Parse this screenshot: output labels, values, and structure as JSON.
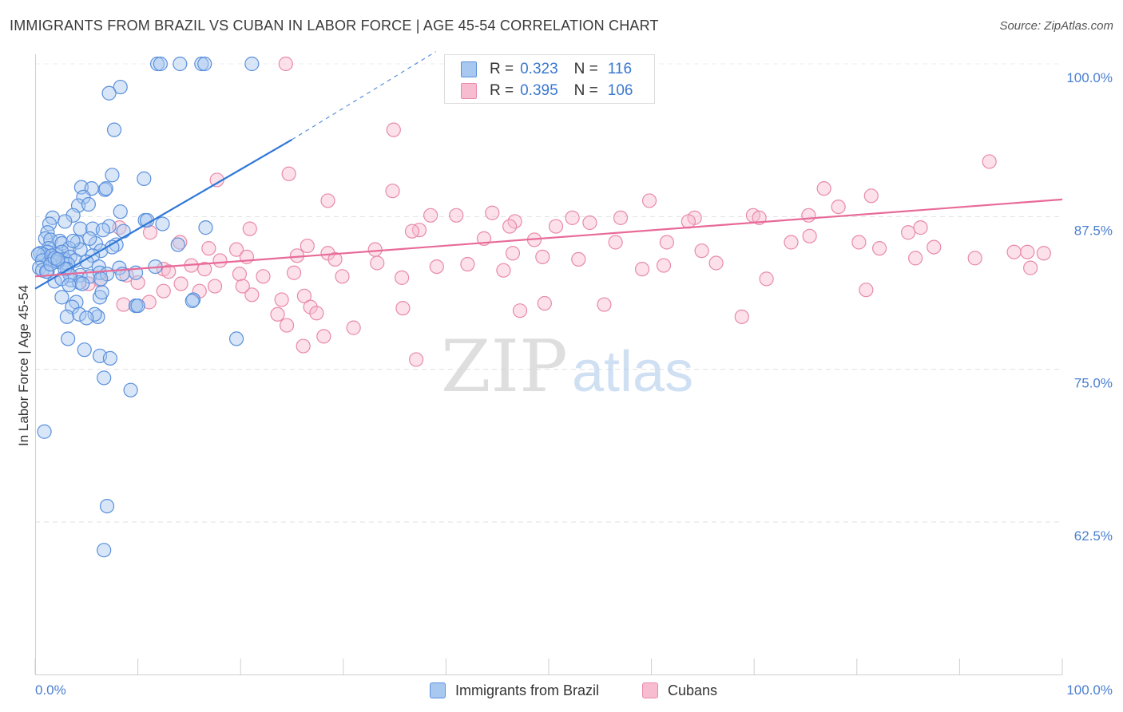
{
  "header": {
    "title": "IMMIGRANTS FROM BRAZIL VS CUBAN IN LABOR FORCE | AGE 45-54 CORRELATION CHART",
    "source": "Source: ZipAtlas.com"
  },
  "watermark": "ZIPatlas",
  "stats": {
    "r_label": "R =",
    "n_label": "N =",
    "rows": [
      {
        "r": "0.323",
        "n": "116"
      },
      {
        "r": "0.395",
        "n": "106"
      }
    ]
  },
  "colors": {
    "brazil_fill": "#a8c8f0",
    "brazil_stroke": "#5a90dc",
    "brazil_line": "#2f78d8",
    "cuba_fill": "#f8bcd0",
    "cuba_stroke": "#e88aa8",
    "cuba_line": "#e86a98",
    "tick_text": "#4a7fd0"
  },
  "chart_data": {
    "type": "scatter",
    "xlabel": "",
    "ylabel": "In Labor Force | Age 45-54",
    "xlim": [
      0,
      100
    ],
    "ylim": [
      52.5,
      101.5
    ],
    "x_tick_labels": [
      "0.0%",
      "100.0%"
    ],
    "y_ticks": [
      62.5,
      75.0,
      87.5,
      100.0
    ],
    "y_tick_labels": [
      "62.5%",
      "75.0%",
      "87.5%",
      "100.0%"
    ],
    "grid": "horizontal-dashed",
    "legend": "bottom-center",
    "series": [
      {
        "name": "Immigrants from Brazil",
        "color": "#5a90dc",
        "r": 0.323,
        "n": 116,
        "trend": {
          "x": [
            0.0,
            25.0
          ],
          "y": [
            81.6,
            93.8
          ],
          "dashed_to": [
            39.0,
            101.0
          ]
        },
        "x": [
          11.9,
          12.2,
          14.1,
          16.2,
          16.5,
          21.1,
          8.3,
          7.2,
          7.7,
          7.5,
          6.8,
          10.6,
          6.9,
          4.5,
          5.5,
          4.7,
          4.2,
          5.2,
          3.7,
          8.3,
          7.2,
          10.7,
          10.9,
          1.7,
          1.4,
          1.2,
          2.9,
          4.4,
          5.6,
          6.6,
          8.6,
          12.4,
          13.9,
          16.6,
          1.0,
          1.5,
          2.4,
          2.6,
          4.1,
          5.9,
          7.9,
          5.3,
          3.3,
          4.4,
          6.4,
          7.5,
          1.3,
          1.2,
          0.8,
          0.5,
          0.3,
          2.0,
          2.6,
          2.9,
          3.4,
          5.6,
          0.7,
          1.7,
          2.7,
          3.9,
          3.2,
          5.0,
          6.2,
          8.2,
          11.7,
          0.4,
          0.7,
          1.2,
          3.1,
          4.4,
          5.3,
          6.3,
          7.0,
          8.5,
          9.8,
          15.4,
          1.9,
          3.5,
          4.3,
          6.4,
          9.8,
          2.6,
          4.0,
          3.6,
          6.3,
          6.5,
          9.8,
          10.0,
          15.3,
          19.6,
          3.1,
          4.3,
          6.1,
          5.8,
          5.0,
          3.2,
          4.8,
          6.3,
          7.3,
          6.7,
          9.3,
          7.0,
          6.7,
          0.9,
          1.6,
          2.2,
          2.9,
          3.4,
          1.1,
          1.5,
          1.9,
          2.6,
          3.3,
          4.6,
          2.2,
          3.7
        ],
        "y": [
          100.0,
          100.0,
          100.0,
          100.0,
          100.0,
          100.0,
          98.1,
          97.6,
          94.6,
          90.9,
          89.7,
          90.6,
          89.8,
          89.9,
          89.8,
          89.1,
          88.4,
          88.5,
          87.6,
          87.9,
          86.7,
          87.2,
          87.2,
          87.4,
          86.9,
          86.2,
          87.1,
          86.5,
          86.5,
          86.4,
          86.3,
          86.9,
          85.2,
          86.6,
          85.7,
          85.6,
          85.5,
          85.3,
          85.4,
          85.3,
          85.2,
          85.7,
          84.9,
          84.8,
          84.7,
          85.0,
          84.9,
          84.6,
          84.4,
          84.5,
          84.4,
          84.4,
          84.6,
          84.0,
          84.2,
          84.3,
          83.9,
          83.9,
          83.7,
          83.9,
          83.6,
          83.8,
          83.4,
          83.3,
          83.4,
          83.3,
          83.1,
          83.0,
          83.2,
          82.7,
          82.6,
          82.9,
          82.8,
          82.8,
          82.9,
          80.7,
          82.2,
          82.3,
          82.1,
          82.4,
          80.2,
          80.9,
          80.5,
          80.1,
          80.9,
          81.3,
          80.2,
          80.2,
          80.6,
          77.5,
          79.3,
          79.5,
          79.3,
          79.5,
          79.2,
          77.5,
          76.6,
          76.1,
          75.9,
          74.3,
          73.3,
          63.8,
          60.2,
          69.9,
          84.3,
          83.8,
          83.2,
          82.7,
          83.0,
          83.6,
          84.1,
          82.4,
          81.9,
          82.0,
          84.0,
          85.5
        ]
      },
      {
        "name": "Cubans",
        "color": "#e88aa8",
        "r": 0.395,
        "n": 106,
        "trend": {
          "x": [
            0.0,
            100.0
          ],
          "y": [
            82.6,
            88.9
          ]
        },
        "x": [
          24.4,
          34.9,
          92.9,
          24.7,
          17.7,
          28.5,
          76.8,
          59.8,
          81.4,
          78.2,
          69.9,
          34.8,
          46.7,
          44.5,
          41.0,
          38.5,
          52.3,
          57.0,
          64.2,
          70.5,
          75.3,
          37.4,
          46.2,
          50.7,
          54.0,
          63.6,
          85.0,
          86.2,
          75.4,
          80.2,
          8.2,
          11.2,
          14.1,
          16.9,
          19.6,
          20.9,
          26.5,
          36.7,
          28.5,
          33.1,
          49.4,
          43.7,
          48.6,
          56.5,
          61.5,
          64.9,
          73.6,
          82.2,
          87.5,
          98.2,
          96.6,
          91.5,
          15.2,
          18.0,
          20.6,
          25.5,
          29.2,
          33.3,
          39.1,
          42.1,
          52.9,
          46.5,
          61.2,
          66.3,
          85.7,
          95.3,
          96.9,
          12.5,
          13.0,
          16.5,
          19.9,
          22.2,
          25.2,
          29.9,
          35.7,
          45.6,
          59.1,
          71.2,
          5.2,
          6.3,
          8.9,
          10.0,
          12.5,
          14.2,
          17.5,
          21.1,
          24.0,
          26.2,
          26.8,
          27.4,
          35.8,
          47.2,
          49.6,
          55.4,
          68.8,
          80.9,
          8.6,
          11.1,
          16.0,
          20.2,
          23.6,
          24.5,
          31.0,
          28.1,
          26.1,
          37.1
        ],
        "y": [
          100.0,
          94.6,
          92.0,
          91.0,
          90.5,
          88.8,
          89.8,
          88.8,
          89.2,
          88.3,
          87.6,
          89.6,
          87.1,
          87.8,
          87.6,
          87.6,
          87.4,
          87.4,
          87.4,
          87.4,
          87.6,
          86.4,
          86.7,
          86.7,
          87.0,
          87.1,
          86.2,
          86.6,
          85.9,
          85.4,
          86.6,
          86.2,
          85.4,
          84.9,
          84.8,
          86.5,
          85.1,
          86.3,
          84.5,
          84.8,
          84.2,
          85.7,
          85.6,
          85.4,
          85.4,
          84.7,
          85.4,
          84.9,
          85.0,
          84.5,
          84.6,
          84.1,
          83.5,
          83.9,
          84.2,
          84.3,
          84.0,
          83.7,
          83.4,
          83.6,
          84.0,
          84.5,
          83.5,
          83.7,
          84.1,
          84.6,
          83.3,
          83.2,
          83.0,
          83.2,
          82.8,
          82.6,
          82.9,
          82.6,
          82.5,
          83.1,
          83.2,
          82.4,
          82.0,
          82.3,
          82.7,
          82.1,
          81.4,
          82.0,
          81.8,
          81.1,
          80.7,
          81.0,
          80.1,
          79.6,
          80.0,
          79.8,
          80.4,
          80.3,
          79.3,
          81.5,
          80.3,
          80.5,
          81.4,
          81.8,
          79.5,
          78.6,
          78.4,
          77.7,
          76.9,
          75.8
        ]
      }
    ]
  },
  "legend": {
    "items": [
      "Immigrants from Brazil",
      "Cubans"
    ]
  }
}
